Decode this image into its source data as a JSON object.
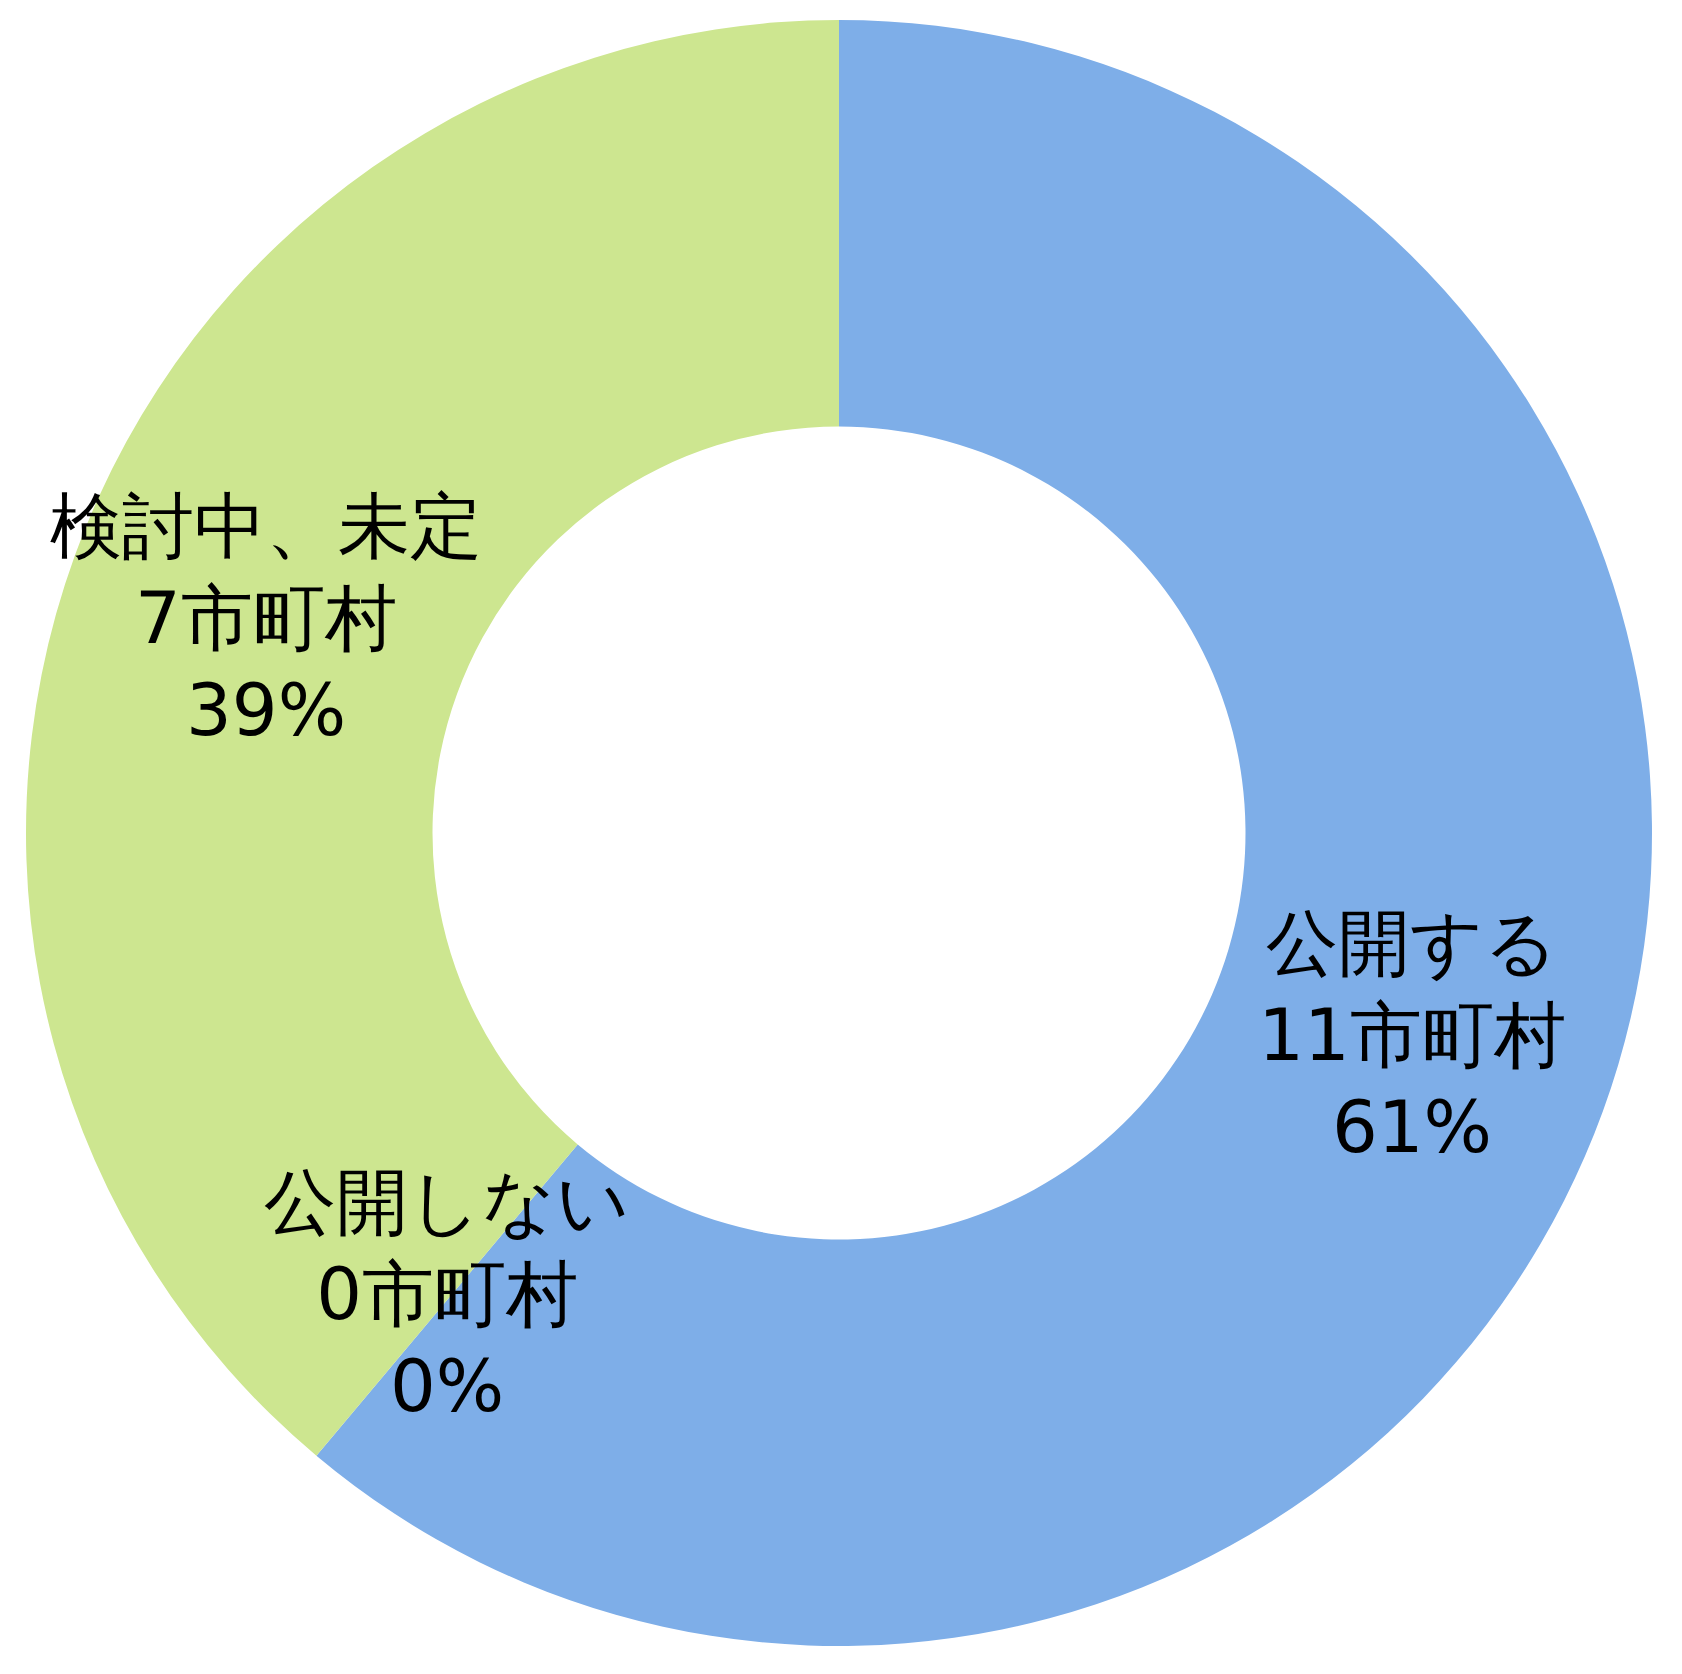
{
  "chart_data": {
    "type": "donut",
    "categories": [
      "公開する",
      "公開しない",
      "検討中、未定"
    ],
    "values": [
      11,
      0,
      7
    ],
    "colors": [
      "#7eaee8",
      "#a8c8f0",
      "#cde690"
    ],
    "value_labels": [
      "11市町村\n61%",
      "0市町村\n0%",
      "7市町村\n39%"
    ],
    "legend": false
  }
}
